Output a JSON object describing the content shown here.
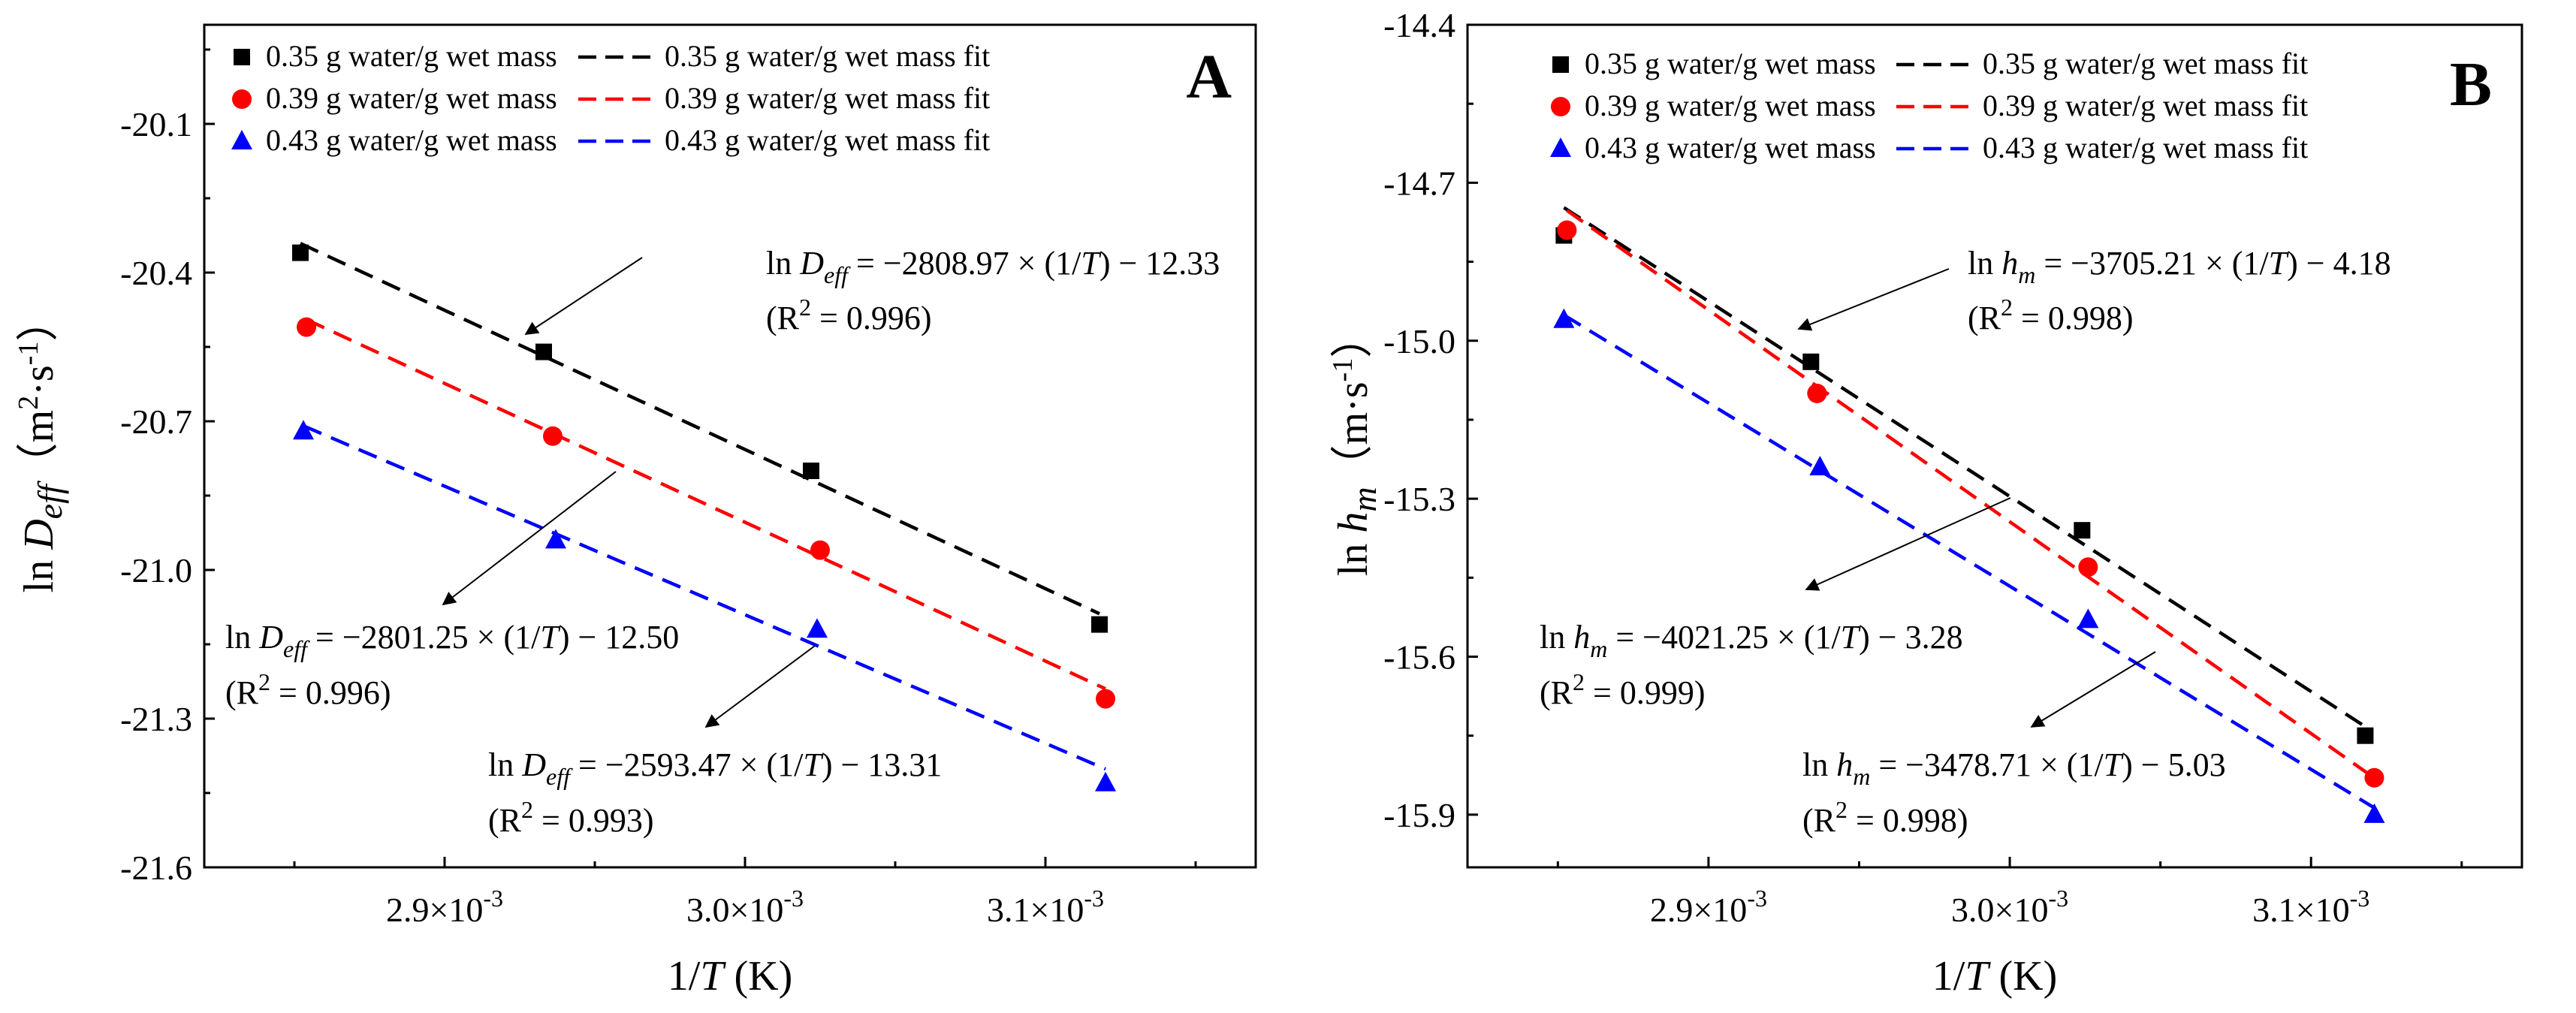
{
  "chart_data": [
    {
      "type": "scatter",
      "panel_label": "A",
      "xlabel": "1/T (K)",
      "ylabel": "ln Deff（m²·s⁻¹）",
      "xlim": [
        0.00282,
        0.00317
      ],
      "ylim": [
        -21.6,
        -19.9
      ],
      "xticks": [
        0.0029,
        0.003,
        0.0031
      ],
      "xtick_labels": [
        "2.9×10⁻³",
        "3.0×10⁻³",
        "3.1×10⁻³"
      ],
      "yticks": [
        -21.6,
        -21.3,
        -21.0,
        -20.7,
        -20.4,
        -20.1
      ],
      "ytick_labels": [
        "-21.6",
        "-21.3",
        "-21.0",
        "-20.7",
        "-20.4",
        "-20.1"
      ],
      "legend_position": "top",
      "series": [
        {
          "name": "0.35 g water/g wet mass",
          "fit_name": "0.35 g water/g wet mass fit",
          "color": "#000000",
          "marker": "square",
          "x": [
            0.002852,
            0.002933,
            0.003022,
            0.003118
          ],
          "y": [
            -20.36,
            -20.56,
            -20.8,
            -21.11
          ],
          "fit": {
            "slope": -2808.97,
            "intercept": -12.33
          }
        },
        {
          "name": "0.39 g water/g wet mass",
          "fit_name": "0.39 g water/g wet mass fit",
          "color": "#ff0000",
          "marker": "circle",
          "x": [
            0.002854,
            0.002936,
            0.003025,
            0.00312
          ],
          "y": [
            -20.51,
            -20.73,
            -20.96,
            -21.26
          ],
          "fit": {
            "slope": -2801.25,
            "intercept": -12.5
          }
        },
        {
          "name": "0.43 g water/g wet mass",
          "fit_name": "0.43 g water/g wet mass fit",
          "color": "#0000ff",
          "marker": "triangle",
          "x": [
            0.002853,
            0.002937,
            0.003024,
            0.00312
          ],
          "y": [
            -20.72,
            -20.94,
            -21.12,
            -21.43
          ],
          "fit": {
            "slope": -2593.47,
            "intercept": -13.31
          }
        }
      ],
      "annotations": [
        {
          "lhs": "ln ",
          "var": "D",
          "sub": "eff",
          "rhs": " = −2808.97 × (1/T) − 12.33",
          "r2": "(R² = 0.996)"
        },
        {
          "lhs": "ln ",
          "var": "D",
          "sub": "eff",
          "rhs": " = −2801.25 × (1/T) − 12.50",
          "r2": "(R² = 0.996)"
        },
        {
          "lhs": "ln ",
          "var": "D",
          "sub": "eff",
          "rhs": " = −2593.47 × (1/T) − 13.31",
          "r2": "(R² = 0.993)"
        }
      ]
    },
    {
      "type": "scatter",
      "panel_label": "B",
      "xlabel": "1/T (K)",
      "ylabel": "ln hm（m·s⁻¹）",
      "xlim": [
        0.00282,
        0.00317
      ],
      "ylim": [
        -16.0,
        -14.4
      ],
      "xticks": [
        0.0029,
        0.003,
        0.0031
      ],
      "xtick_labels": [
        "2.9×10⁻³",
        "3.0×10⁻³",
        "3.1×10⁻³"
      ],
      "yticks": [
        -15.9,
        -15.6,
        -15.3,
        -15.0,
        -14.7,
        -14.4
      ],
      "ytick_labels": [
        "-15.9",
        "-15.6",
        "-15.3",
        "-15.0",
        "-14.7",
        "-14.4"
      ],
      "legend_position": "top",
      "series": [
        {
          "name": "0.35 g water/g wet mass",
          "fit_name": "0.35 g water/g wet mass fit",
          "color": "#000000",
          "marker": "square",
          "x": [
            0.002852,
            0.002934,
            0.003024,
            0.003118
          ],
          "y": [
            -14.8,
            -15.04,
            -15.36,
            -15.75
          ],
          "fit": {
            "slope": -3705.21,
            "intercept": -4.18
          }
        },
        {
          "name": "0.39 g water/g wet mass",
          "fit_name": "0.39 g water/g wet mass fit",
          "color": "#ff0000",
          "marker": "circle",
          "x": [
            0.002853,
            0.002936,
            0.003026,
            0.003121
          ],
          "y": [
            -14.79,
            -15.1,
            -15.43,
            -15.83
          ],
          "fit": {
            "slope": -4021.25,
            "intercept": -3.28
          }
        },
        {
          "name": "0.43 g water/g wet mass",
          "fit_name": "0.43 g water/g wet mass fit",
          "color": "#0000ff",
          "marker": "triangle",
          "x": [
            0.002852,
            0.002937,
            0.003026,
            0.003121
          ],
          "y": [
            -14.96,
            -15.24,
            -15.53,
            -15.9
          ],
          "fit": {
            "slope": -3478.71,
            "intercept": -5.03
          }
        }
      ],
      "annotations": [
        {
          "lhs": "ln ",
          "var": "h",
          "sub": "m",
          "rhs": " = −3705.21 × (1/T) − 4.18",
          "r2": "(R² = 0.998)"
        },
        {
          "lhs": "ln ",
          "var": "h",
          "sub": "m",
          "rhs": " = −4021.25 × (1/T) − 3.28",
          "r2": "(R² = 0.999)"
        },
        {
          "lhs": "ln ",
          "var": "h",
          "sub": "m",
          "rhs": " = −3478.71 × (1/T) − 5.03",
          "r2": "(R² = 0.998)"
        }
      ]
    }
  ]
}
